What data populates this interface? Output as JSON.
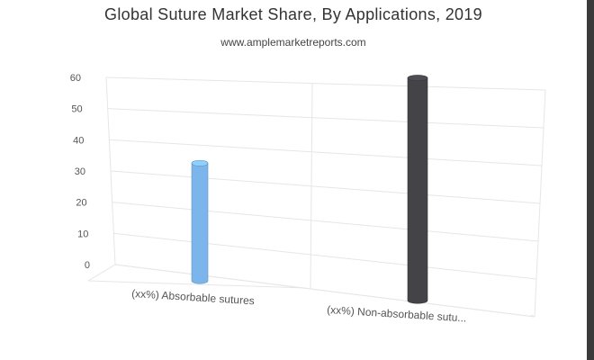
{
  "title": "Global Suture Market Share, By Applications, 2019",
  "subtitle": "www.amplemarketreports.com",
  "chart_data": {
    "type": "bar",
    "categories": [
      "(xx%) Absorbable sutures",
      "(xx%) Non-absorbable sutu..."
    ],
    "values": [
      40,
      53
    ],
    "colors": [
      "#7cb5ec",
      "#434348"
    ],
    "ylim": [
      0,
      60
    ],
    "yticks": [
      "0",
      "10",
      "20",
      "30",
      "40",
      "50",
      "60"
    ],
    "grid": true,
    "legend": "none",
    "style": "3d-cylinder"
  }
}
